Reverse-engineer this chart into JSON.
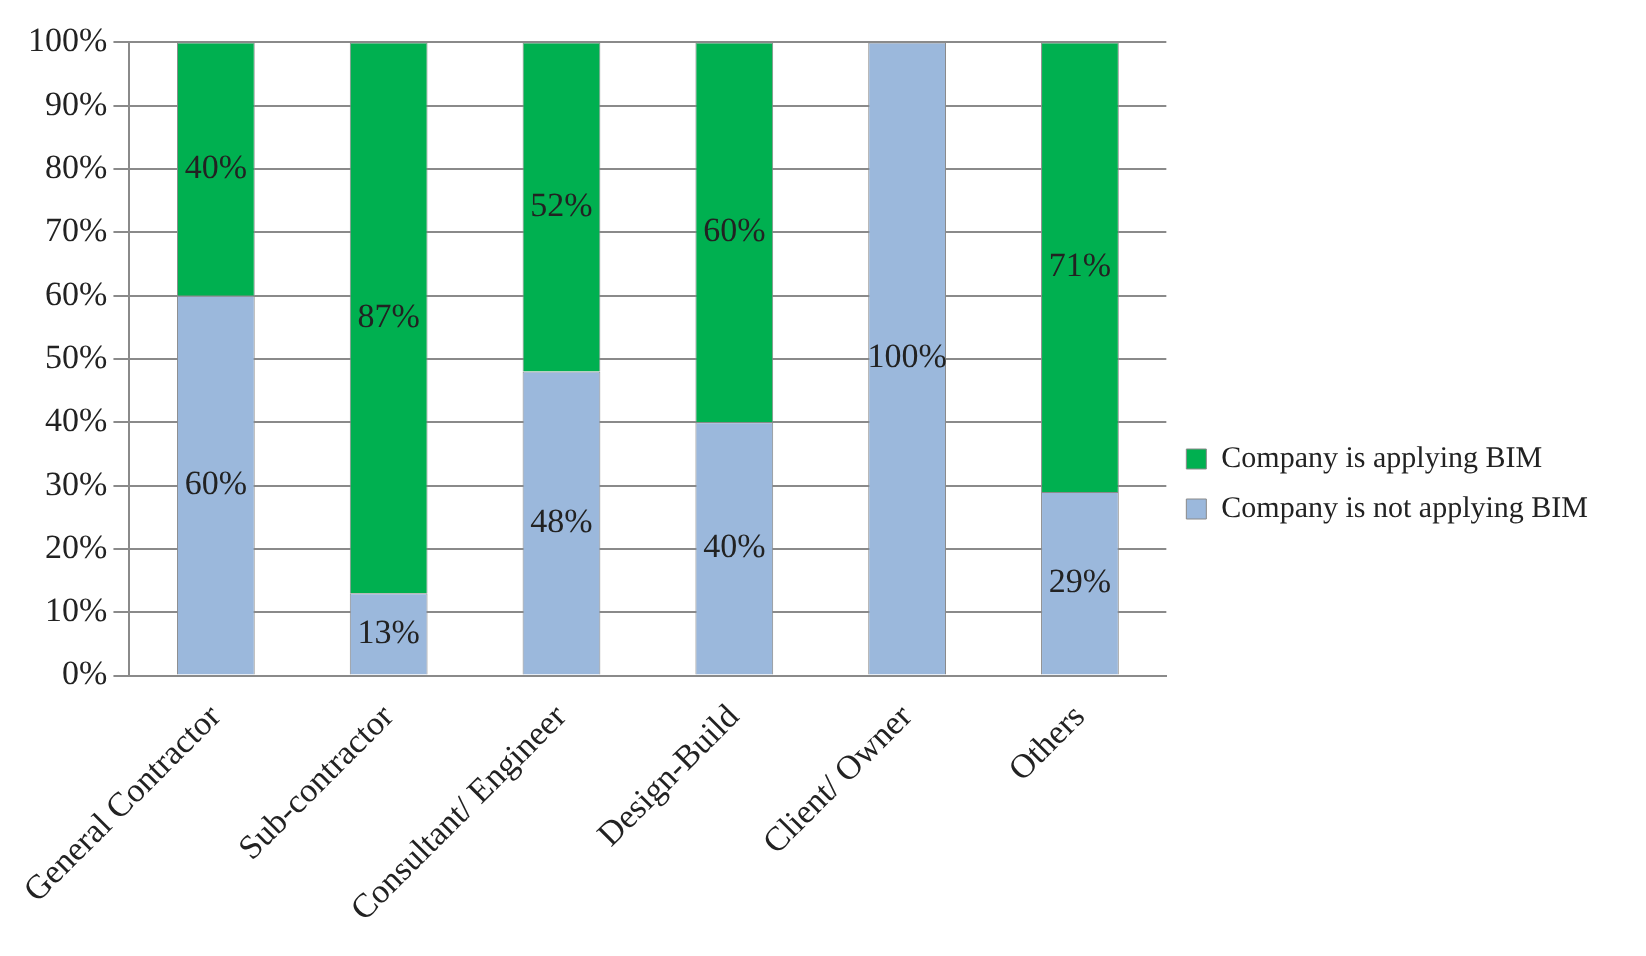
{
  "chart_data": {
    "type": "bar",
    "stacked": true,
    "categories": [
      "General Contractor",
      "Sub-contractor",
      "Consultant/ Engineer",
      "Design-Build",
      "Client/ Owner",
      "Others"
    ],
    "series": [
      {
        "name": "Company is not applying BIM",
        "color": "#9bb8dc",
        "values": [
          60,
          13,
          48,
          40,
          100,
          29
        ],
        "value_labels": [
          "60%",
          "13%",
          "48%",
          "40%",
          "100%",
          "29%"
        ]
      },
      {
        "name": "Company is applying BIM",
        "color": "#00b050",
        "values": [
          40,
          87,
          52,
          60,
          0,
          71
        ],
        "value_labels": [
          "40%",
          "87%",
          "52%",
          "60%",
          null,
          "71%"
        ]
      }
    ],
    "ylim": [
      0,
      100
    ],
    "yticks": [
      {
        "value": 0,
        "label": "0%"
      },
      {
        "value": 10,
        "label": "10%"
      },
      {
        "value": 20,
        "label": "20%"
      },
      {
        "value": 30,
        "label": "30%"
      },
      {
        "value": 40,
        "label": "40%"
      },
      {
        "value": 50,
        "label": "50%"
      },
      {
        "value": 60,
        "label": "60%"
      },
      {
        "value": 70,
        "label": "70%"
      },
      {
        "value": 80,
        "label": "80%"
      },
      {
        "value": 90,
        "label": "90%"
      },
      {
        "value": 100,
        "label": "100%"
      }
    ],
    "grid": "y",
    "legend": "right"
  }
}
